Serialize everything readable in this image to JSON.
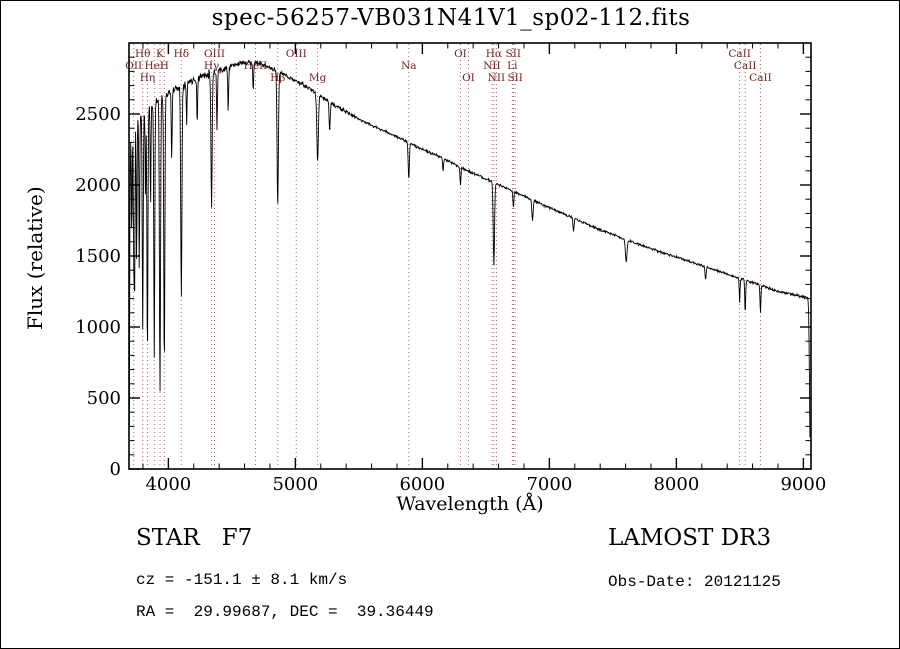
{
  "chart_data": {
    "type": "line",
    "title": "spec-56257-VB031N41V1_sp02-112.fits",
    "xlabel": "Wavelength (Å)",
    "ylabel": "Flux (relative)",
    "xlim": [
      3690,
      9060
    ],
    "ylim": [
      0,
      3000
    ],
    "x_ticks": [
      4000,
      5000,
      6000,
      7000,
      8000,
      9000
    ],
    "y_ticks": [
      0,
      500,
      1000,
      1500,
      2000,
      2500
    ],
    "x_minor_step": 200,
    "y_minor_step": 100,
    "grid": false,
    "legend": "none",
    "line_color": "#000000",
    "marker_line_color": "#bb6060",
    "marker_label_color": "#7a2020",
    "sample_range": [
      3693,
      9053
    ],
    "sample_step": 3.5,
    "noise": {
      "seed": 11,
      "blue_amp": 42,
      "mid_amp": 22,
      "red_amp": 13
    },
    "continuum_points": [
      [
        3693,
        300
      ],
      [
        3697,
        1800
      ],
      [
        3702,
        2300
      ],
      [
        3720,
        2380
      ],
      [
        3760,
        2450
      ],
      [
        3800,
        2500
      ],
      [
        3850,
        2540
      ],
      [
        3900,
        2590
      ],
      [
        3950,
        2615
      ],
      [
        4000,
        2650
      ],
      [
        4100,
        2700
      ],
      [
        4200,
        2745
      ],
      [
        4300,
        2780
      ],
      [
        4400,
        2805
      ],
      [
        4500,
        2840
      ],
      [
        4600,
        2865
      ],
      [
        4700,
        2858
      ],
      [
        4800,
        2825
      ],
      [
        4900,
        2782
      ],
      [
        5000,
        2735
      ],
      [
        5100,
        2685
      ],
      [
        5200,
        2625
      ],
      [
        5300,
        2565
      ],
      [
        5400,
        2515
      ],
      [
        5500,
        2465
      ],
      [
        5600,
        2420
      ],
      [
        5700,
        2380
      ],
      [
        5800,
        2340
      ],
      [
        5900,
        2295
      ],
      [
        6000,
        2252
      ],
      [
        6100,
        2212
      ],
      [
        6200,
        2172
      ],
      [
        6300,
        2125
      ],
      [
        6400,
        2082
      ],
      [
        6500,
        2042
      ],
      [
        6600,
        2002
      ],
      [
        6700,
        1962
      ],
      [
        6800,
        1922
      ],
      [
        6900,
        1882
      ],
      [
        7000,
        1842
      ],
      [
        7100,
        1802
      ],
      [
        7200,
        1762
      ],
      [
        7300,
        1722
      ],
      [
        7400,
        1685
      ],
      [
        7500,
        1652
      ],
      [
        7600,
        1615
      ],
      [
        7700,
        1582
      ],
      [
        7800,
        1552
      ],
      [
        7900,
        1522
      ],
      [
        8000,
        1492
      ],
      [
        8100,
        1462
      ],
      [
        8200,
        1432
      ],
      [
        8300,
        1402
      ],
      [
        8400,
        1372
      ],
      [
        8500,
        1342
      ],
      [
        8600,
        1312
      ],
      [
        8700,
        1282
      ],
      [
        8800,
        1252
      ],
      [
        8900,
        1232
      ],
      [
        9000,
        1212
      ],
      [
        9035,
        1205
      ],
      [
        9042,
        1100
      ],
      [
        9048,
        620
      ],
      [
        9053,
        60
      ]
    ],
    "absorption_lines": [
      {
        "wl": 3712,
        "depth": 700,
        "width": 7
      },
      {
        "wl": 3727,
        "depth": 900,
        "width": 7
      },
      {
        "wl": 3734,
        "depth": 1200,
        "width": 7
      },
      {
        "wl": 3750,
        "depth": 1000,
        "width": 7
      },
      {
        "wl": 3771,
        "depth": 1100,
        "width": 7
      },
      {
        "wl": 3798,
        "depth": 1500,
        "width": 9
      },
      {
        "wl": 3820,
        "depth": 600,
        "width": 7
      },
      {
        "wl": 3835,
        "depth": 1750,
        "width": 9
      },
      {
        "wl": 3860,
        "depth": 700,
        "width": 7
      },
      {
        "wl": 3889,
        "depth": 1800,
        "width": 9
      },
      {
        "wl": 3934,
        "depth": 2100,
        "width": 10
      },
      {
        "wl": 3968,
        "depth": 1900,
        "width": 10
      },
      {
        "wl": 4026,
        "depth": 500,
        "width": 8
      },
      {
        "wl": 4102,
        "depth": 1500,
        "width": 11
      },
      {
        "wl": 4144,
        "depth": 300,
        "width": 7
      },
      {
        "wl": 4227,
        "depth": 350,
        "width": 7
      },
      {
        "wl": 4340,
        "depth": 950,
        "width": 11
      },
      {
        "wl": 4383,
        "depth": 400,
        "width": 8
      },
      {
        "wl": 4471,
        "depth": 320,
        "width": 8
      },
      {
        "wl": 4668,
        "depth": 200,
        "width": 8
      },
      {
        "wl": 4861,
        "depth": 950,
        "width": 12
      },
      {
        "wl": 5175,
        "depth": 480,
        "width": 14
      },
      {
        "wl": 5270,
        "depth": 200,
        "width": 10
      },
      {
        "wl": 5893,
        "depth": 260,
        "width": 11
      },
      {
        "wl": 6163,
        "depth": 90,
        "width": 8
      },
      {
        "wl": 6300,
        "depth": 130,
        "width": 8
      },
      {
        "wl": 6563,
        "depth": 590,
        "width": 12
      },
      {
        "wl": 6717,
        "depth": 120,
        "width": 8
      },
      {
        "wl": 6867,
        "depth": 140,
        "width": 12
      },
      {
        "wl": 7190,
        "depth": 90,
        "width": 10
      },
      {
        "wl": 7605,
        "depth": 160,
        "width": 14
      },
      {
        "wl": 8230,
        "depth": 90,
        "width": 10
      },
      {
        "wl": 8498,
        "depth": 170,
        "width": 7
      },
      {
        "wl": 8542,
        "depth": 230,
        "width": 8
      },
      {
        "wl": 8662,
        "depth": 200,
        "width": 8
      }
    ],
    "spectral_markers": [
      {
        "label": "Hθ",
        "wl": 3798,
        "row": 1
      },
      {
        "label": "K",
        "wl": 3934,
        "row": 1
      },
      {
        "label": "Hδ",
        "wl": 4102,
        "row": 1
      },
      {
        "label": "OIII",
        "wl": 4363,
        "row": 1
      },
      {
        "label": "OIII",
        "wl": 5007,
        "row": 1
      },
      {
        "label": "OI",
        "wl": 6300,
        "row": 1
      },
      {
        "label": "Hα",
        "wl": 6563,
        "row": 1
      },
      {
        "label": "SII",
        "wl": 6716,
        "row": 1
      },
      {
        "label": "CaII",
        "wl": 8498,
        "row": 1
      },
      {
        "label": "OII",
        "wl": 3727,
        "row": 2
      },
      {
        "label": "HeI",
        "wl": 3889,
        "row": 2
      },
      {
        "label": "H",
        "wl": 3968,
        "row": 2
      },
      {
        "label": "Hγ",
        "wl": 4340,
        "row": 2
      },
      {
        "label": "HeII",
        "wl": 4686,
        "row": 2
      },
      {
        "label": "Na",
        "wl": 5893,
        "row": 2
      },
      {
        "label": "NII",
        "wl": 6548,
        "row": 2
      },
      {
        "label": "Li",
        "wl": 6708,
        "row": 2
      },
      {
        "label": "CaII",
        "wl": 8542,
        "row": 2
      },
      {
        "label": "Hη",
        "wl": 3835,
        "row": 3
      },
      {
        "label": "Hβ",
        "wl": 4861,
        "row": 3
      },
      {
        "label": "Mg",
        "wl": 5175,
        "row": 3
      },
      {
        "label": "OI",
        "wl": 6363,
        "row": 3
      },
      {
        "label": "NII",
        "wl": 6583,
        "row": 3
      },
      {
        "label": "SII",
        "wl": 6731,
        "row": 3
      },
      {
        "label": "CaII",
        "wl": 8662,
        "row": 3
      }
    ]
  },
  "annotations": {
    "class_line": "STAR   F7",
    "cz_line": "cz = -151.1 ± 8.1 km/s",
    "radec_line": "RA =  29.99687, DEC =  39.36449",
    "survey": "LAMOST DR3",
    "obsdate": "Obs-Date: 20121125"
  }
}
